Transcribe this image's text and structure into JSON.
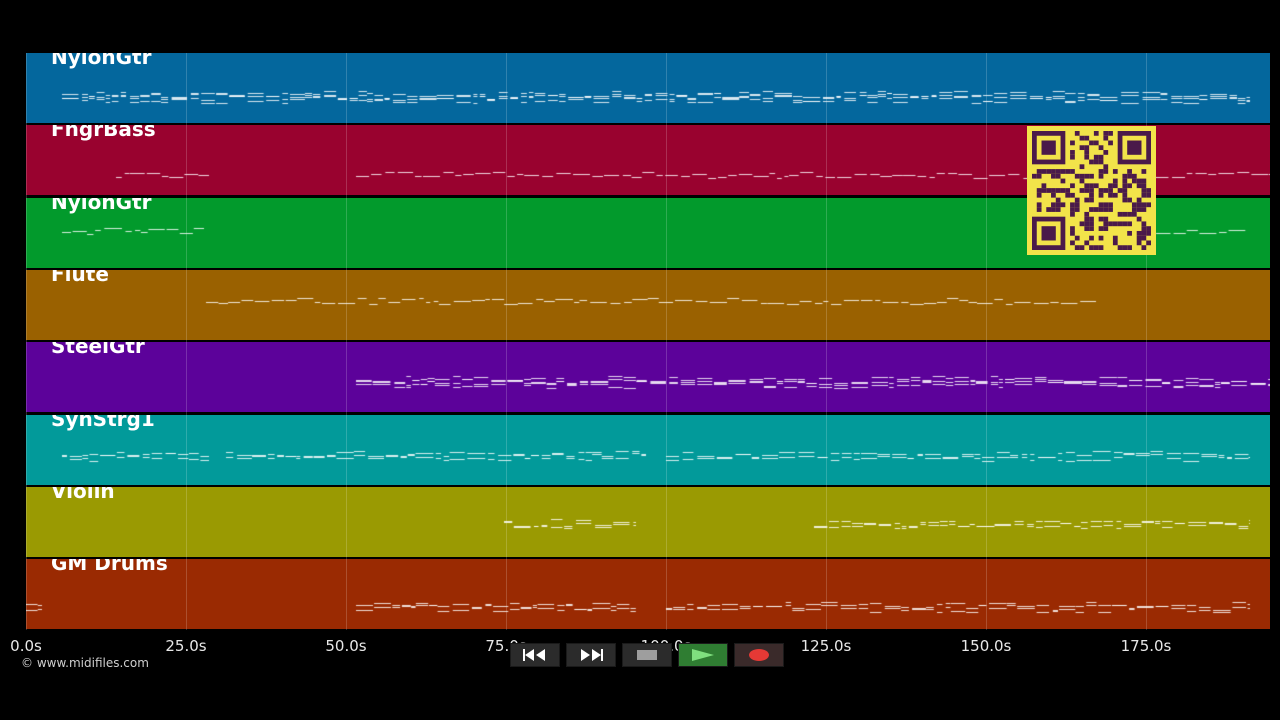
{
  "tracks": [
    {
      "label": "NylonGtr",
      "color": "#04679d"
    },
    {
      "label": "FngrBass",
      "color": "#99022f"
    },
    {
      "label": "NylonGtr",
      "color": "#029a2c"
    },
    {
      "label": "Flute",
      "color": "#9a6100"
    },
    {
      "label": "SteelGtr",
      "color": "#5c029a"
    },
    {
      "label": "SynStrg1",
      "color": "#029a9a"
    },
    {
      "label": "Violin",
      "color": "#9a9a02"
    },
    {
      "label": "GM Drums",
      "color": "#9a2a02"
    }
  ],
  "timeline": {
    "ticks": [
      "0.0s",
      "25.0s",
      "50.0s",
      "75.0s",
      "100.0s",
      "125.0s",
      "150.0s",
      "175.0s"
    ]
  },
  "copyright": "© www.midifiles.com",
  "controls": {
    "rewind": "rewind-icon",
    "fast_forward": "fast-forward-icon",
    "stop": "stop-icon",
    "play": "play-icon",
    "record": "record-icon"
  },
  "colors": {
    "background": "#000000",
    "qr_background": "#f2e34a",
    "qr_foreground": "#4a1a4a",
    "play_button": "#2f7d32",
    "record_dot": "#e53935"
  }
}
